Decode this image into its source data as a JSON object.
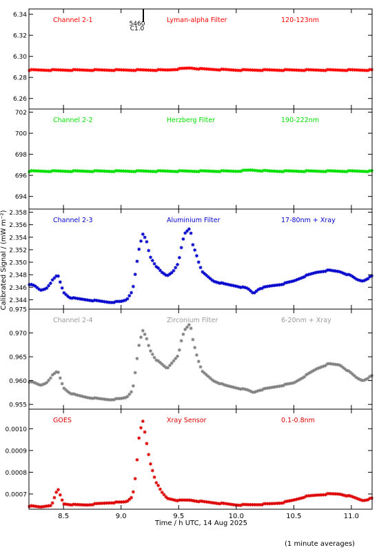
{
  "figure": {
    "ylabel": "Calibrated Signal / (mW m⁻²)",
    "xlabel": "Time / h UTC, 14 Aug 2025",
    "footnote": "(1 minute averages)",
    "marker_labels": [
      "5460",
      "C1.0"
    ],
    "xlim": [
      8.2,
      11.18
    ],
    "xticks": [
      8.5,
      9.0,
      9.5,
      10.0,
      10.5,
      11.0
    ],
    "xtick_labels": [
      "8.5",
      "9.0",
      "9.5",
      "10.0",
      "10.5",
      "11.0"
    ]
  },
  "chart_data": [
    {
      "type": "scatter",
      "channel_label": "Channel 2-1",
      "filter_label": "Lyman-alpha Filter",
      "band_label": "120-123nm",
      "color": "#ff0000",
      "ylim": [
        6.25,
        6.345
      ],
      "yticks": [
        6.26,
        6.28,
        6.3,
        6.32,
        6.34
      ],
      "ytick_labels": [
        "6.26",
        "6.28",
        "6.30",
        "6.32",
        "6.34"
      ],
      "series": [
        {
          "x": [
            8.2,
            8.5,
            8.8,
            9.1,
            9.4,
            9.5,
            9.6,
            9.7,
            10.0,
            10.3,
            10.6,
            10.9,
            11.18
          ],
          "y": [
            6.287,
            6.287,
            6.287,
            6.287,
            6.287,
            6.288,
            6.289,
            6.288,
            6.287,
            6.287,
            6.287,
            6.287,
            6.287
          ]
        }
      ]
    },
    {
      "type": "scatter",
      "channel_label": "Channel 2-2",
      "filter_label": "Herzberg Filter",
      "band_label": "190-222nm",
      "color": "#00e000",
      "ylim": [
        692.8,
        702.3
      ],
      "yticks": [
        694,
        696,
        698,
        700,
        702
      ],
      "ytick_labels": [
        "694",
        "696",
        "698",
        "700",
        "702"
      ],
      "series": [
        {
          "x": [
            8.2,
            8.5,
            8.8,
            9.1,
            9.4,
            9.7,
            10.0,
            10.13,
            10.3,
            10.6,
            10.9,
            11.18
          ],
          "y": [
            696.4,
            696.4,
            696.4,
            696.4,
            696.4,
            696.4,
            696.4,
            696.5,
            696.4,
            696.4,
            696.4,
            696.4
          ]
        }
      ]
    },
    {
      "type": "scatter",
      "channel_label": "Channel 2-3",
      "filter_label": "Aluminium Filter",
      "band_label": "17-80nm + Xray",
      "color": "#0000cc",
      "ylim": [
        2.3425,
        2.3585
      ],
      "yticks": [
        2.344,
        2.346,
        2.348,
        2.35,
        2.352,
        2.354,
        2.356,
        2.358
      ],
      "ytick_labels": [
        "2.344",
        "2.346",
        "2.348",
        "2.350",
        "2.352",
        "2.354",
        "2.356",
        "2.358"
      ],
      "series": [
        {
          "x": [
            8.2,
            8.25,
            8.3,
            8.35,
            8.4,
            8.45,
            8.5,
            8.55,
            8.6,
            8.7,
            8.8,
            8.9,
            9.0,
            9.05,
            9.1,
            9.13,
            9.16,
            9.19,
            9.22,
            9.25,
            9.3,
            9.35,
            9.4,
            9.45,
            9.5,
            9.52,
            9.55,
            9.6,
            9.62,
            9.65,
            9.7,
            9.8,
            9.9,
            10.0,
            10.1,
            10.15,
            10.2,
            10.3,
            10.4,
            10.5,
            10.6,
            10.7,
            10.8,
            10.9,
            11.0,
            11.05,
            11.1,
            11.18
          ],
          "y": [
            2.3465,
            2.3462,
            2.3455,
            2.3458,
            2.347,
            2.348,
            2.3452,
            2.3444,
            2.3442,
            2.344,
            2.3438,
            2.3436,
            2.3437,
            2.344,
            2.3455,
            2.349,
            2.3525,
            2.3545,
            2.3535,
            2.351,
            2.3495,
            2.3484,
            2.3478,
            2.3485,
            2.35,
            2.352,
            2.3545,
            2.3555,
            2.353,
            2.3515,
            2.3485,
            2.347,
            2.3465,
            2.3462,
            2.3458,
            2.345,
            2.3458,
            2.3462,
            2.3465,
            2.347,
            2.3478,
            2.3484,
            2.3487,
            2.3485,
            2.3478,
            2.3472,
            2.347,
            2.3478
          ]
        }
      ]
    },
    {
      "type": "scatter",
      "channel_label": "Channel 2-4",
      "filter_label": "Zirconium Filter",
      "band_label": "6-20nm + Xray",
      "color": "#808080",
      "label_color": "#9a9a9a",
      "ylim": [
        0.954,
        0.975
      ],
      "yticks": [
        0.955,
        0.96,
        0.965,
        0.97,
        0.975
      ],
      "ytick_labels": [
        "0.955",
        "0.960",
        "0.965",
        "0.970",
        "0.975"
      ],
      "series": [
        {
          "x": [
            8.2,
            8.25,
            8.3,
            8.35,
            8.4,
            8.45,
            8.5,
            8.55,
            8.6,
            8.7,
            8.8,
            8.9,
            9.0,
            9.05,
            9.1,
            9.13,
            9.16,
            9.19,
            9.22,
            9.25,
            9.3,
            9.35,
            9.4,
            9.45,
            9.5,
            9.52,
            9.55,
            9.6,
            9.62,
            9.65,
            9.7,
            9.8,
            9.9,
            10.0,
            10.1,
            10.15,
            10.2,
            10.3,
            10.4,
            10.5,
            10.6,
            10.7,
            10.8,
            10.9,
            11.0,
            11.05,
            11.1,
            11.18
          ],
          "y": [
            0.9598,
            0.9595,
            0.959,
            0.9595,
            0.961,
            0.962,
            0.9585,
            0.9575,
            0.957,
            0.9565,
            0.9562,
            0.956,
            0.9562,
            0.9565,
            0.958,
            0.963,
            0.968,
            0.9705,
            0.969,
            0.9665,
            0.9645,
            0.9635,
            0.9625,
            0.964,
            0.9655,
            0.968,
            0.9705,
            0.972,
            0.969,
            0.966,
            0.962,
            0.96,
            0.959,
            0.9585,
            0.958,
            0.9575,
            0.958,
            0.9585,
            0.959,
            0.9595,
            0.961,
            0.9625,
            0.9635,
            0.9633,
            0.9615,
            0.9605,
            0.96,
            0.961
          ]
        }
      ]
    },
    {
      "type": "scatter",
      "channel_label": "GOES",
      "filter_label": "Xray Sensor",
      "band_label": "0.1-0.8nm",
      "color": "#dd0000",
      "ylim": [
        0.00063,
        0.00109
      ],
      "yticks": [
        0.0007,
        0.0008,
        0.0009,
        0.001
      ],
      "ytick_labels": [
        "0.0007",
        "0.0008",
        "0.0009",
        "0.0010"
      ],
      "series": [
        {
          "x": [
            8.2,
            8.3,
            8.4,
            8.45,
            8.5,
            8.6,
            8.7,
            8.8,
            8.9,
            9.0,
            9.05,
            9.1,
            9.13,
            9.16,
            9.19,
            9.22,
            9.25,
            9.3,
            9.35,
            9.4,
            9.5,
            9.6,
            9.7,
            9.8,
            9.9,
            10.0,
            10.1,
            10.2,
            10.3,
            10.4,
            10.5,
            10.6,
            10.7,
            10.8,
            10.9,
            11.0,
            11.1,
            11.18
          ],
          "y": [
            0.000645,
            0.00064,
            0.00065,
            0.000725,
            0.000655,
            0.00065,
            0.00065,
            0.000655,
            0.00066,
            0.000662,
            0.000665,
            0.00069,
            0.0008,
            0.00098,
            0.001035,
            0.00094,
            0.00085,
            0.00076,
            0.00071,
            0.00068,
            0.00067,
            0.000672,
            0.000665,
            0.00066,
            0.000655,
            0.00065,
            0.00065,
            0.000652,
            0.000655,
            0.00066,
            0.000672,
            0.000688,
            0.000695,
            0.0007,
            0.0007,
            0.000688,
            0.00067,
            0.00068
          ]
        }
      ]
    }
  ]
}
